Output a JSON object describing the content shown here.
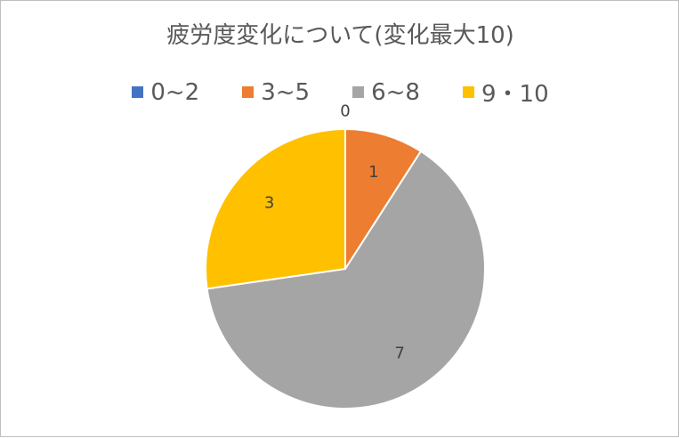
{
  "chart_data": {
    "type": "pie",
    "title": "疲労度変化について(変化最大10)",
    "categories": [
      "0~2",
      "3~5",
      "6~8",
      "9・10"
    ],
    "values": [
      0,
      1,
      7,
      3
    ],
    "colors": [
      "#4472c4",
      "#ed7d31",
      "#a5a5a5",
      "#ffc000"
    ],
    "data_labels": [
      "0",
      "1",
      "7",
      "3"
    ],
    "legend": "top"
  }
}
